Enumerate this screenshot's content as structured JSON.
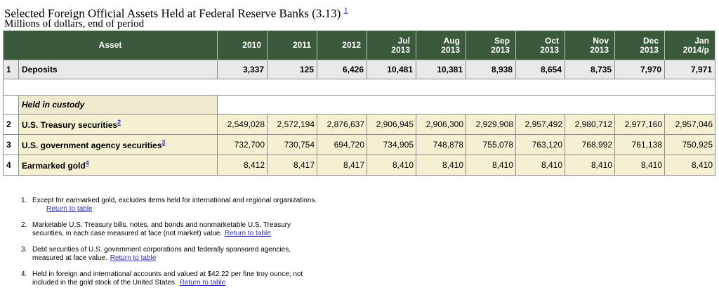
{
  "title": "Selected Foreign Official Assets Held at Federal Reserve Banks (3.13)",
  "title_footnote": "1",
  "subtitle": "Millions of dollars, end of period",
  "table": {
    "asset_header": "Asset",
    "periods": [
      {
        "line1": "2010",
        "line2": ""
      },
      {
        "line1": "2011",
        "line2": ""
      },
      {
        "line1": "2012",
        "line2": ""
      },
      {
        "line1": "Jul",
        "line2": "2013"
      },
      {
        "line1": "Aug",
        "line2": "2013"
      },
      {
        "line1": "Sep",
        "line2": "2013"
      },
      {
        "line1": "Oct",
        "line2": "2013"
      },
      {
        "line1": "Nov",
        "line2": "2013"
      },
      {
        "line1": "Dec",
        "line2": "2013"
      },
      {
        "line1": "Jan",
        "line2": "2014/p"
      }
    ],
    "deposits": {
      "num": "1",
      "label": "Deposits",
      "values": [
        "3,337",
        "125",
        "6,426",
        "10,481",
        "10,381",
        "8,938",
        "8,654",
        "8,735",
        "7,970",
        "7,971"
      ]
    },
    "section_label": "Held in custody",
    "custody_rows": [
      {
        "num": "2",
        "label": "U.S. Treasury securities",
        "footnote": "2",
        "values": [
          "2,549,028",
          "2,572,194",
          "2,876,637",
          "2,906,945",
          "2,906,300",
          "2,929,908",
          "2,957,492",
          "2,980,712",
          "2,977,160",
          "2,957,046"
        ]
      },
      {
        "num": "3",
        "label": "U.S. government agency securities",
        "footnote": "3",
        "values": [
          "732,700",
          "730,754",
          "694,720",
          "734,905",
          "748,878",
          "755,078",
          "763,120",
          "768,992",
          "761,138",
          "750,925"
        ]
      },
      {
        "num": "4",
        "label": "Earmarked gold",
        "footnote": "4",
        "values": [
          "8,412",
          "8,417",
          "8,417",
          "8,410",
          "8,410",
          "8,410",
          "8,410",
          "8,410",
          "8,410",
          "8,410"
        ]
      }
    ]
  },
  "notes": [
    {
      "num": "1.",
      "line1": "Except for earmarked gold, excludes items held for international and regional organizations.",
      "line2": "",
      "link": "Return to table"
    },
    {
      "num": "2.",
      "line1": "Marketable U.S. Treasury bills, notes, and bonds and nonmarketable U.S. Treasury",
      "line2": "securities, in each case measured at face (not market) value.",
      "link": "Return to table"
    },
    {
      "num": "3.",
      "line1": "Debt securities of U.S. government corporations and federally sponsored agencies,",
      "line2": "measured at face value.",
      "link": "Return to table"
    },
    {
      "num": "4.",
      "line1": "Held in foreign and international accounts and valued at $42.22 per fine troy ounce; not",
      "line2": "included in the gold stock of the United States.",
      "link": "Return to table"
    }
  ]
}
